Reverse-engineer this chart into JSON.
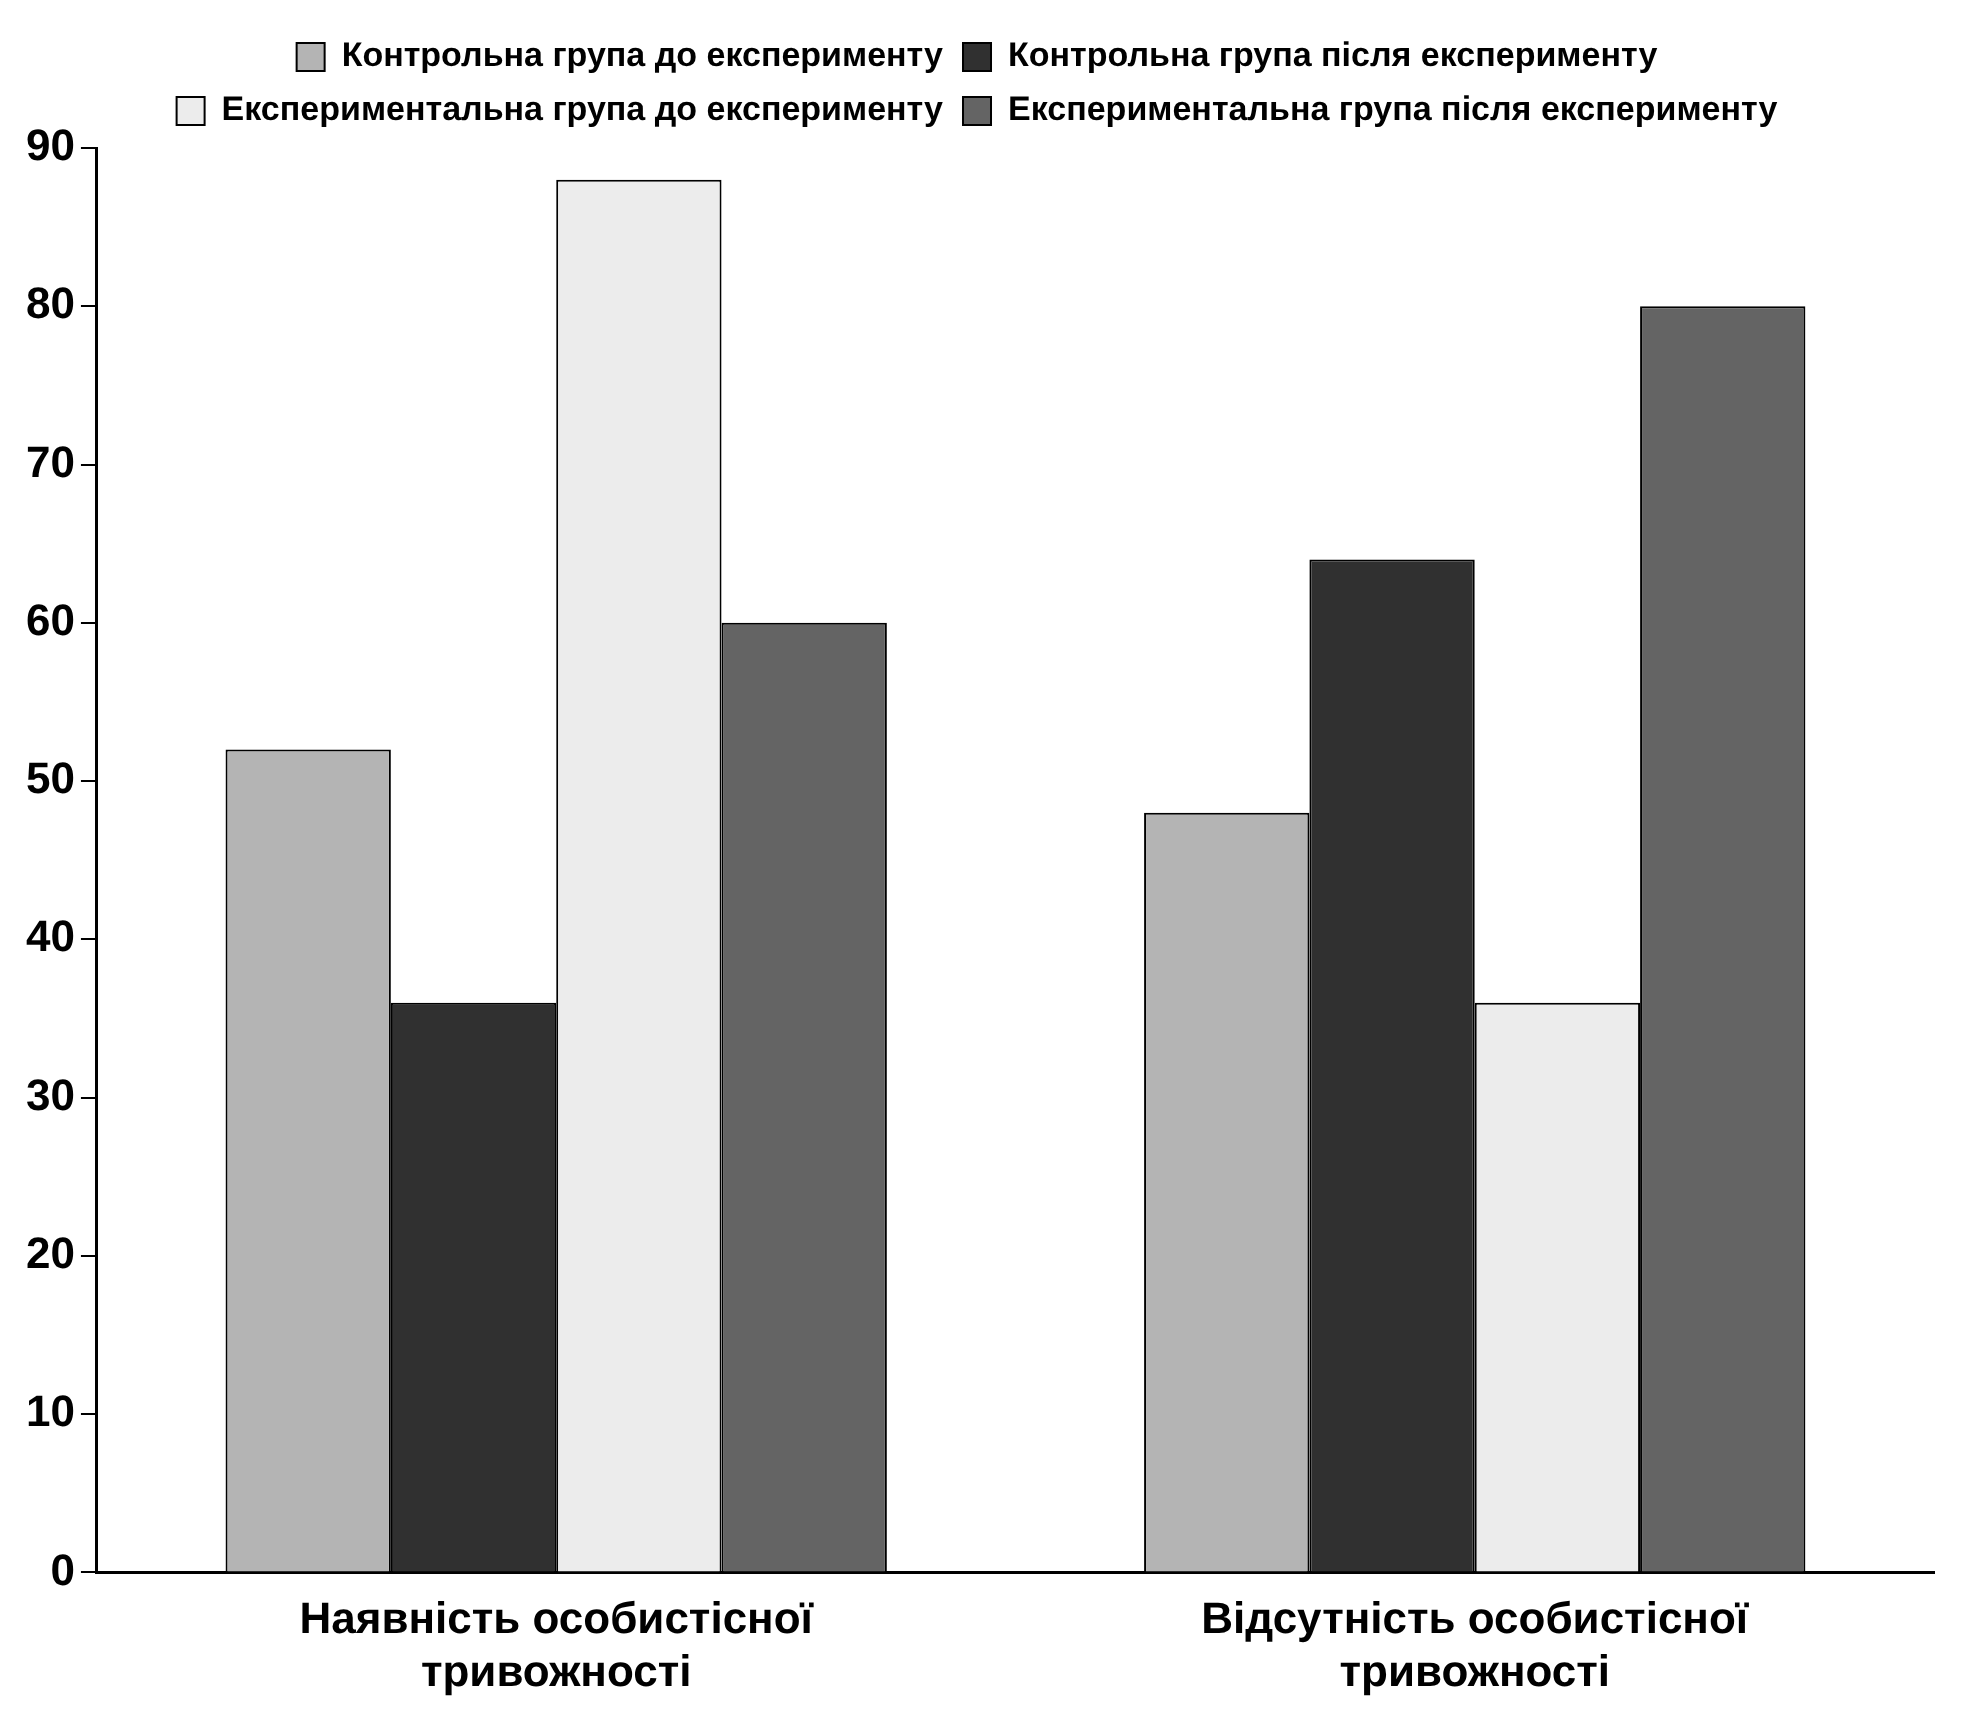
{
  "chart_data": {
    "type": "bar",
    "categories": [
      "Наявність особистісної тривожності",
      "Відсутність особистісної тривожності"
    ],
    "series": [
      {
        "name": "Контрольна група до експерименту",
        "color": "#b4b4b4",
        "values": [
          52,
          48
        ]
      },
      {
        "name": "Контрольна група після експерименту",
        "color": "#303030",
        "values": [
          36,
          64
        ]
      },
      {
        "name": "Експериментальна група до експерименту",
        "color": "#ececec",
        "values": [
          88,
          36
        ]
      },
      {
        "name": "Експериментальна група після експерименту",
        "color": "#646464",
        "values": [
          60,
          80
        ]
      }
    ],
    "ylim": [
      0,
      90
    ],
    "yticks": [
      0,
      10,
      20,
      30,
      40,
      50,
      60,
      70,
      80,
      90
    ],
    "grid": false,
    "legend": "top"
  }
}
